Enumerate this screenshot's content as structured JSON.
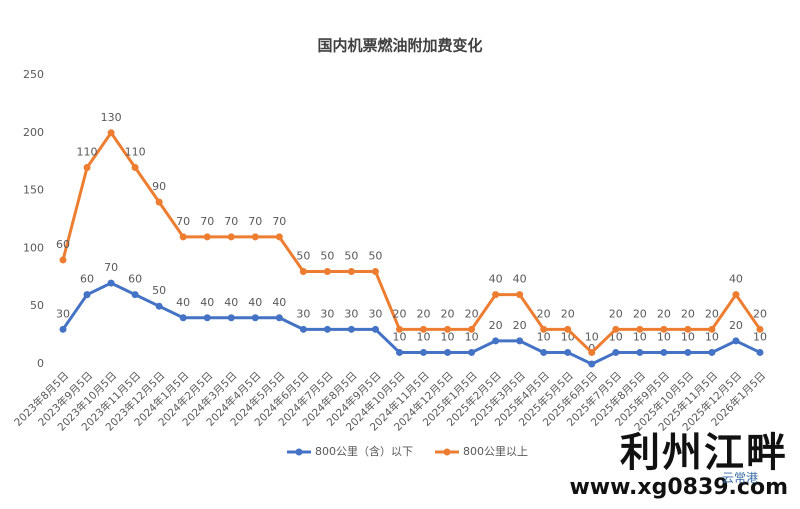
{
  "chart_data": {
    "type": "stacked-line",
    "title": "国内机票燃油附加费变化",
    "categories": [
      "2023年8月5日",
      "2023年9月5日",
      "2023年10月5日",
      "2023年11月5日",
      "2023年12月5日",
      "2024年1月5日",
      "2024年2月5日",
      "2024年3月5日",
      "2024年4月5日",
      "2024年5月5日",
      "2024年6月5日",
      "2024年7月5日",
      "2024年8月5日",
      "2024年9月5日",
      "2024年10月5日",
      "2024年11月5日",
      "2024年12月5日",
      "2025年1月5日",
      "2025年2月5日",
      "2025年3月5日",
      "2025年4月5日",
      "2025年5月5日",
      "2025年6月5日",
      "2025年7月5日",
      "2025年8月5日",
      "2025年9月5日",
      "2025年10月5日",
      "2025年11月5日",
      "2025年12月5日",
      "2026年1月5日"
    ],
    "series": [
      {
        "name": "800公里（含）以下",
        "color": "#4472c4",
        "values": [
          30,
          60,
          70,
          60,
          50,
          40,
          40,
          40,
          40,
          40,
          30,
          30,
          30,
          30,
          10,
          10,
          10,
          10,
          20,
          20,
          10,
          10,
          0,
          10,
          10,
          10,
          10,
          10,
          20,
          10
        ]
      },
      {
        "name": "800公里以上",
        "color": "#ed7d31",
        "values": [
          60,
          110,
          130,
          110,
          90,
          70,
          70,
          70,
          70,
          70,
          50,
          50,
          50,
          50,
          20,
          20,
          20,
          20,
          40,
          40,
          20,
          20,
          10,
          20,
          20,
          20,
          20,
          20,
          40,
          20
        ]
      }
    ],
    "ylim": [
      0,
      250
    ],
    "yticks": [
      0,
      50,
      100,
      150,
      200,
      250
    ],
    "grid": false,
    "legend": "bottom"
  },
  "watermark": {
    "brand": "利州江畔",
    "url": "www.xg0839.com",
    "corner": "云常港"
  }
}
